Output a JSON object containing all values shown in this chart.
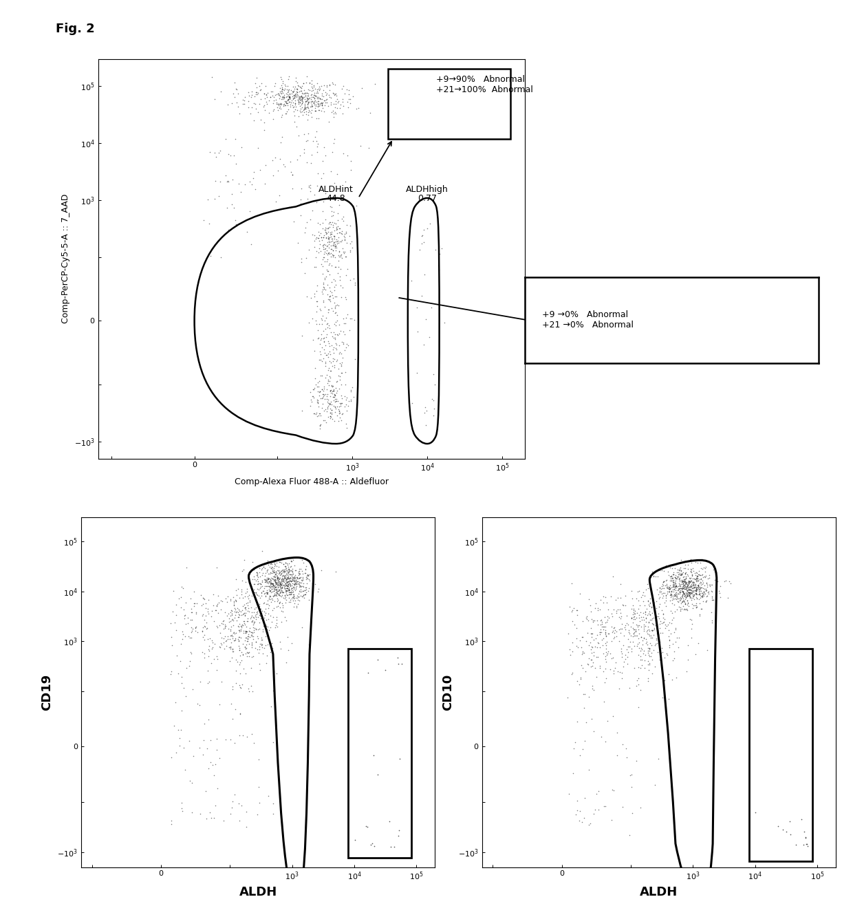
{
  "fig_label": "Fig. 2",
  "plot1": {
    "xlabel": "Comp-Alexa Fluor 488-A :: Aldefluor",
    "ylabel": "Comp-PerCP-Cy5-5-A :: 7_AAD",
    "gate1_label_line1": "ALDHint",
    "gate1_label_line2": "44.8",
    "gate2_label_line1": "ALDHhigh",
    "gate2_label_line2": "0.77",
    "box1_text": "+9→90%   Abnormal\n+21→100%  Abnormal",
    "box2_text": "+9 →0%   Abnormal\n+21 →0%   Abnormal"
  },
  "plot2": {
    "xlabel": "ALDH",
    "ylabel": "CD19"
  },
  "plot3": {
    "xlabel": "ALDH",
    "ylabel": "CD10"
  },
  "dot_color": "#111111",
  "dot_size": 1.2,
  "dot_alpha": 0.55,
  "background_color": "#ffffff"
}
